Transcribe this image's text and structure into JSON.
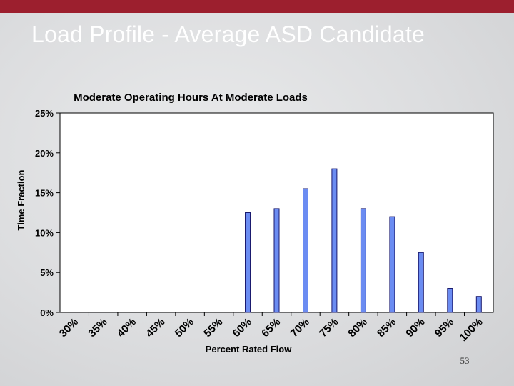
{
  "slide": {
    "title": "Load Profile - Average ASD Candidate",
    "page_number": "53"
  },
  "colors": {
    "top_bar": "#9c1f2e",
    "title_text": "#ffffff",
    "bar_fill": "#6b8cf2",
    "bar_stroke": "#1a1a6e",
    "plot_background": "#ffffff"
  },
  "chart_data": {
    "type": "bar",
    "title": "Moderate Operating Hours At Moderate Loads",
    "xlabel": "Percent Rated Flow",
    "ylabel": "Time Fraction",
    "categories": [
      "30%",
      "35%",
      "40%",
      "45%",
      "50%",
      "55%",
      "60%",
      "65%",
      "70%",
      "75%",
      "80%",
      "85%",
      "90%",
      "95%",
      "100%"
    ],
    "values": [
      0,
      0,
      0,
      0,
      0,
      0,
      12.5,
      13,
      15.5,
      18,
      13,
      12,
      7.5,
      3,
      2
    ],
    "value_unit": "%",
    "ylim": [
      0,
      25
    ],
    "yticks": [
      "0%",
      "5%",
      "10%",
      "15%",
      "20%",
      "25%"
    ],
    "ytick_values": [
      0,
      5,
      10,
      15,
      20,
      25
    ],
    "grid": false,
    "legend": false
  }
}
